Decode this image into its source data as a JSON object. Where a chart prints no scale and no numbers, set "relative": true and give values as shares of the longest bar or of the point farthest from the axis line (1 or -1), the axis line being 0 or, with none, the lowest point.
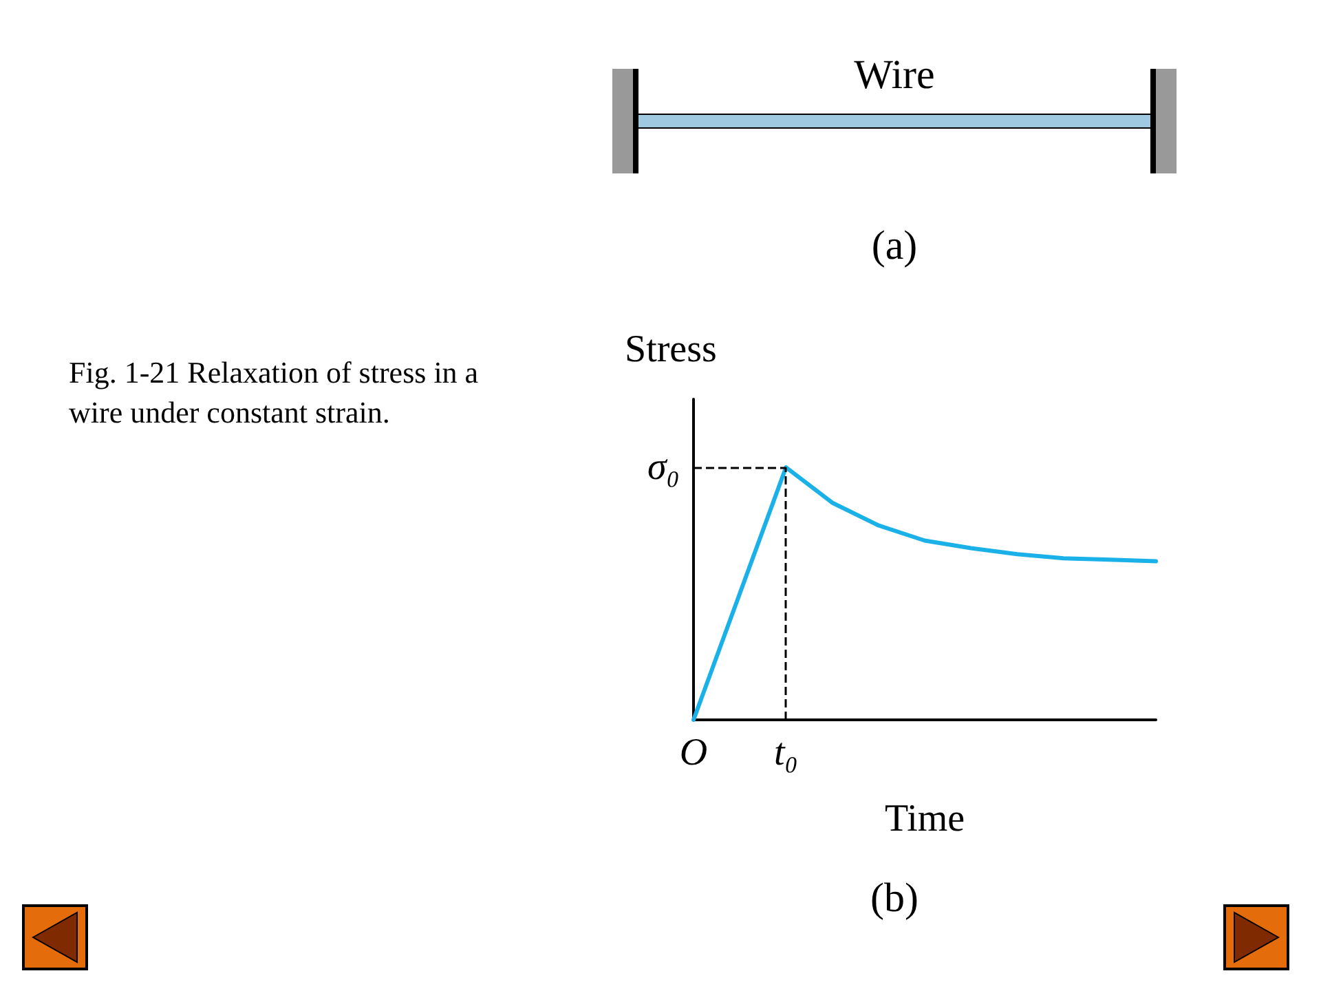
{
  "chart_data": {
    "type": "line",
    "relative": true,
    "xlabel": "Time",
    "ylabel": "Stress",
    "annotations": [
      "Fig. 1-21 Relaxation of stress in a wire under constant strain.",
      "Wire",
      "(a)",
      "(b)"
    ],
    "categories": [
      "O",
      null,
      "t₀",
      null,
      null,
      null,
      null,
      null,
      null,
      null,
      null
    ],
    "series": [
      {
        "color": "#1ab0e8",
        "values": [
          0,
          0.5,
          1,
          0.86,
          0.77,
          0.71,
          0.68,
          0.656,
          0.64,
          0.634,
          0.628
        ]
      }
    ],
    "ref_lines": [
      {
        "axis": "y",
        "value": 1,
        "label": "σ₀",
        "line_style": "dashed",
        "color": "#000000"
      },
      {
        "axis": "x",
        "value": "t₀",
        "line_style": "dashed",
        "color": "#000000"
      }
    ],
    "marker": "none",
    "line_style": "solid"
  }
}
